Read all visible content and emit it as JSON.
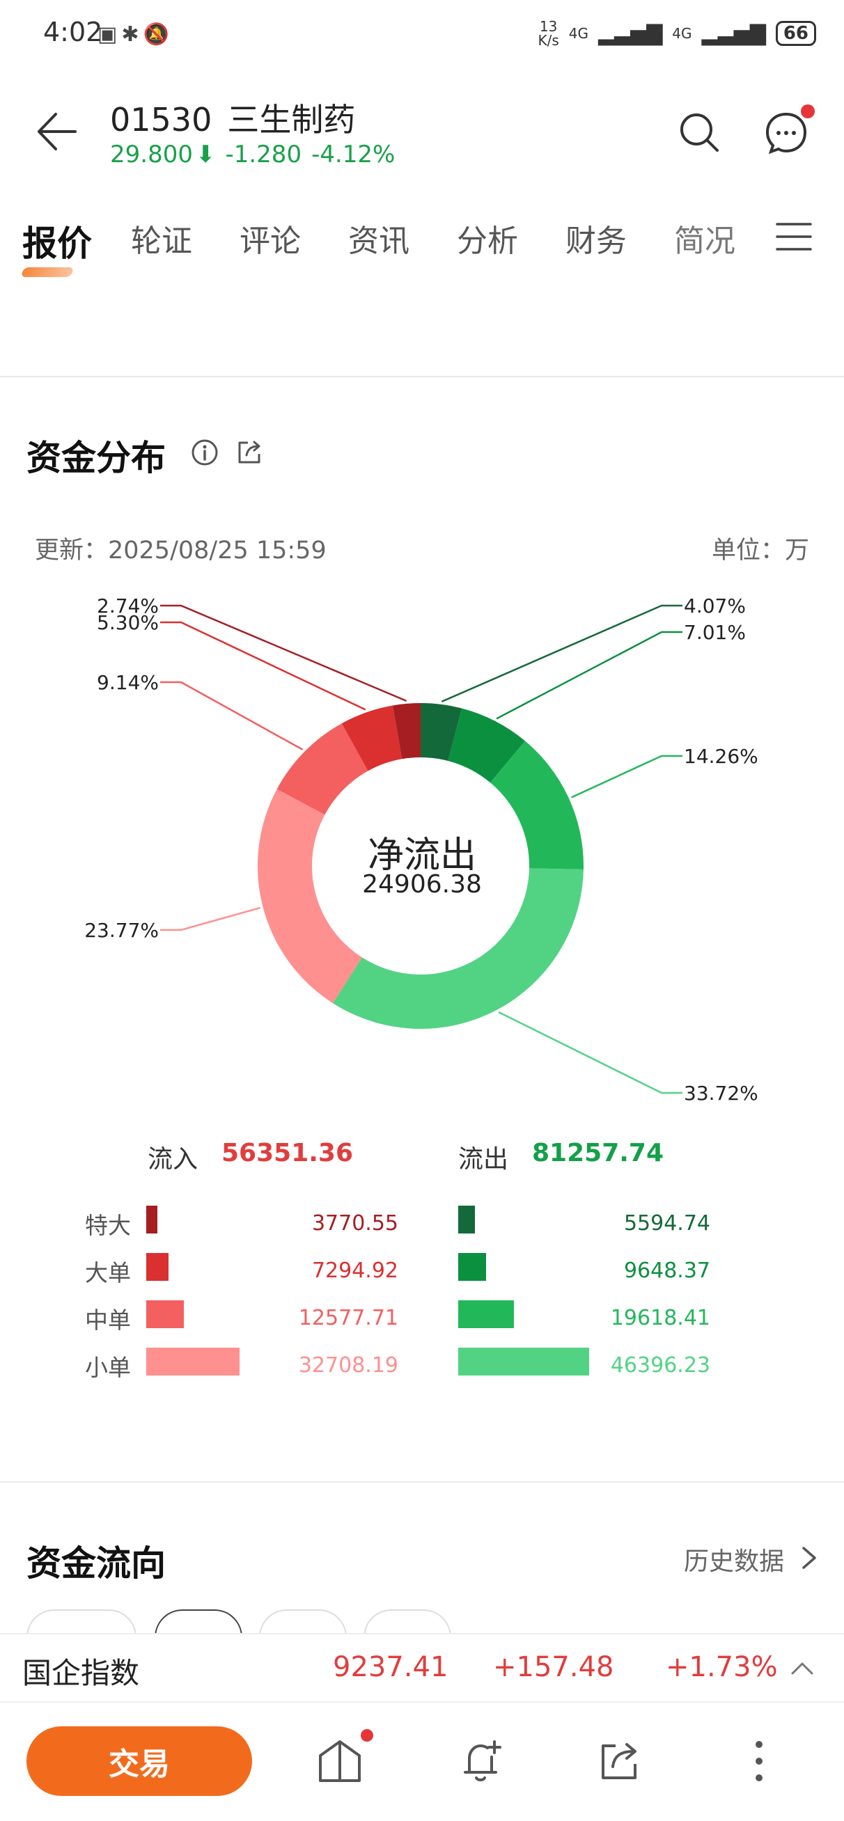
{
  "status_bar": {
    "time": "4:02",
    "net_speed_value": "13",
    "net_speed_unit": "K/s",
    "signal_1": "4G",
    "signal_2": "4G",
    "battery": "66"
  },
  "header": {
    "code": "01530",
    "name": "三生制药",
    "price": "29.800",
    "change": "-1.280",
    "change_pct": "-4.12%"
  },
  "tabs": [
    "报价",
    "轮证",
    "评论",
    "资讯",
    "分析",
    "财务",
    "简况"
  ],
  "capital_distribution": {
    "title": "资金分布",
    "update": "更新：2025/08/25 15:59",
    "unit": "单位：万",
    "center_label": "净流出",
    "center_value": "24906.38",
    "inflow_label": "流入",
    "inflow_value": "56351.36",
    "outflow_label": "流出",
    "outflow_value": "81257.74",
    "rows": [
      {
        "label": "特大",
        "in": "3770.55",
        "out": "5594.74"
      },
      {
        "label": "大单",
        "in": "7294.92",
        "out": "9648.37"
      },
      {
        "label": "中单",
        "in": "12577.71",
        "out": "19618.41"
      },
      {
        "label": "小单",
        "in": "32708.19",
        "out": "46396.23"
      }
    ],
    "colors": {
      "in_xl": "#a61e22",
      "in_l": "#db3030",
      "in_m": "#f45f5f",
      "in_s": "#ff9090",
      "out_xl": "#14693a",
      "out_l": "#0b9040",
      "out_m": "#22b85a",
      "out_s": "#52d384"
    }
  },
  "chart_data": {
    "type": "pie",
    "labels": [
      "2.74%",
      "5.30%",
      "9.14%",
      "23.77%",
      "4.07%",
      "7.01%",
      "14.26%",
      "33.72%"
    ],
    "slices": [
      {
        "label": "2.74%",
        "value": 2.74,
        "color": "#a61e22"
      },
      {
        "label": "5.30%",
        "value": 5.3,
        "color": "#db3030"
      },
      {
        "label": "9.14%",
        "value": 9.14,
        "color": "#f45f5f"
      },
      {
        "label": "23.77%",
        "value": 23.77,
        "color": "#ff9090"
      },
      {
        "label": "4.07%",
        "value": 4.07,
        "color": "#14693a"
      },
      {
        "label": "7.01%",
        "value": 7.01,
        "color": "#0b9040"
      },
      {
        "label": "14.26%",
        "value": 14.26,
        "color": "#22b85a"
      },
      {
        "label": "33.72%",
        "value": 33.72,
        "color": "#52d384"
      }
    ],
    "center_title": "净流出",
    "center_value": "24906.38"
  },
  "capital_flow": {
    "title": "资金流向",
    "history": "历史数据"
  },
  "ticker": {
    "name": "国企指数",
    "value": "9237.41",
    "change": "+157.48",
    "change_pct": "+1.73%"
  },
  "bottom": {
    "trade": "交易"
  }
}
